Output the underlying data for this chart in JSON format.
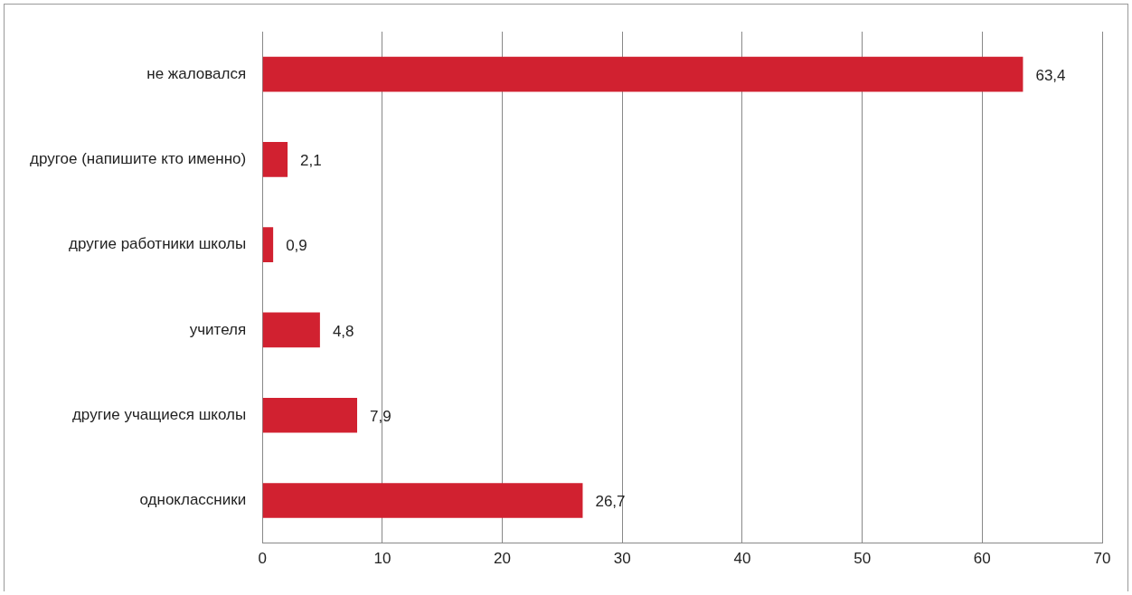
{
  "chart_data": {
    "type": "bar",
    "orientation": "horizontal",
    "categories": [
      "не жаловался",
      "другое (напишите кто именно)",
      "другие работники школы",
      "учителя",
      "другие учащиеся школы",
      "одноклассники"
    ],
    "values": [
      63.4,
      2.1,
      0.9,
      4.8,
      7.9,
      26.7
    ],
    "value_labels": [
      "63,4",
      "2,1",
      "0,9",
      "4,8",
      "7,9",
      "26,7"
    ],
    "color": "#d12130",
    "xlim": [
      0,
      70
    ],
    "xticks": [
      0,
      10,
      20,
      30,
      40,
      50,
      60,
      70
    ],
    "grid": "x"
  }
}
